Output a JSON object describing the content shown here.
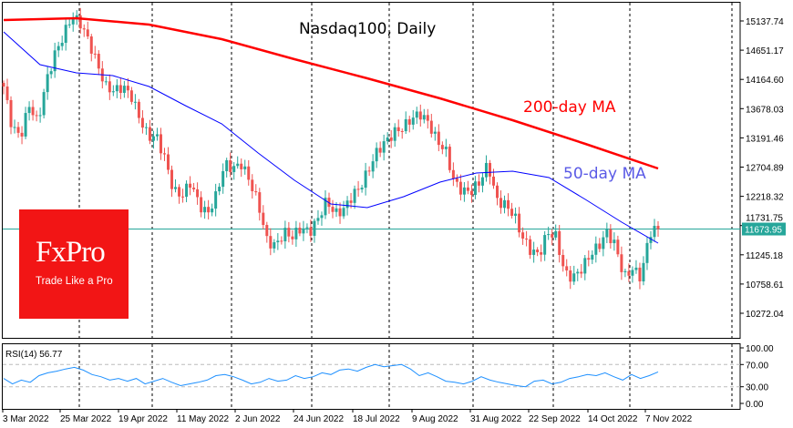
{
  "chart_data": {
    "type": "candlestick",
    "title": "Nasdaq100, Daily",
    "y_ticks": [
      "15137.74",
      "14651.17",
      "14164.60",
      "13678.03",
      "13191.46",
      "12704.89",
      "12218.32",
      "11731.75",
      "11245.18",
      "10758.61",
      "10272.04"
    ],
    "ylim": [
      9900,
      15450
    ],
    "x_ticks": [
      "3 Mar 2022",
      "25 Mar 2022",
      "19 Apr 2022",
      "11 May 2022",
      "2 Jun 2022",
      "24 Jun 2022",
      "18 Jul 2022",
      "9 Aug 2022",
      "31 Aug 2022",
      "22 Sep 2022",
      "14 Oct 2022",
      "7 Nov 2022"
    ],
    "current_price": "11673.95",
    "current_price_value": 11673.95,
    "close": [
      14046,
      13364,
      13213,
      13743,
      13440,
      14122,
      14577,
      14880,
      15214,
      15107,
      14804,
      14425,
      14046,
      13971,
      14046,
      13895,
      13516,
      13213,
      13213,
      12834,
      12303,
      12228,
      12455,
      12076,
      11924,
      12228,
      12758,
      12682,
      12758,
      12455,
      12076,
      11470,
      11394,
      11621,
      11546,
      11697,
      11621,
      11849,
      12152,
      11924,
      12000,
      12228,
      12379,
      12682,
      12985,
      13137,
      13288,
      13364,
      13516,
      13592,
      13440,
      13137,
      12985,
      12455,
      12303,
      12303,
      12455,
      12758,
      12152,
      12076,
      11924,
      11546,
      11318,
      11242,
      11621,
      11546,
      10939,
      10864,
      11015,
      11242,
      11394,
      11621,
      11394,
      10864,
      11015,
      10864,
      11621,
      11674
    ],
    "ma200": {
      "label": "200-day MA",
      "color": "#ff0000",
      "values": [
        15153,
        15183,
        15077,
        14834,
        14501,
        14183,
        13850,
        13486,
        13092,
        12682
      ]
    },
    "ma50": {
      "label": "50-day MA",
      "color": "#0000ff",
      "label_color": "#5a5ae6",
      "values": [
        14956,
        14410,
        14274,
        14228,
        14046,
        13728,
        13425,
        12940,
        12485,
        12091,
        12030,
        12213,
        12455,
        12607,
        12637,
        12531,
        12167,
        11788,
        11439
      ]
    },
    "colors": {
      "up": "#26a69a",
      "down": "#ef5350",
      "price_line": "#26a69a",
      "rsi": "#1e90ff"
    },
    "rsi": {
      "label": "RSI(14) 56.77",
      "y_ticks": [
        "100.00",
        "70.00",
        "30.00",
        "0.00"
      ],
      "levels": [
        70,
        30
      ],
      "values": [
        45,
        35,
        42,
        38,
        50,
        55,
        58,
        62,
        65,
        60,
        52,
        48,
        42,
        45,
        40,
        45,
        35,
        40,
        45,
        38,
        32,
        35,
        38,
        42,
        50,
        52,
        48,
        42,
        35,
        38,
        45,
        40,
        42,
        50,
        45,
        48,
        55,
        52,
        60,
        62,
        58,
        65,
        70,
        66,
        68,
        70,
        62,
        50,
        55,
        48,
        40,
        38,
        35,
        40,
        48,
        42,
        38,
        35,
        32,
        30,
        40,
        42,
        35,
        38,
        45,
        48,
        52,
        50,
        55,
        48,
        42,
        52,
        45,
        50,
        56.77
      ]
    }
  },
  "logo": {
    "brand": "FxPro",
    "tagline": "Trade Like a Pro"
  }
}
